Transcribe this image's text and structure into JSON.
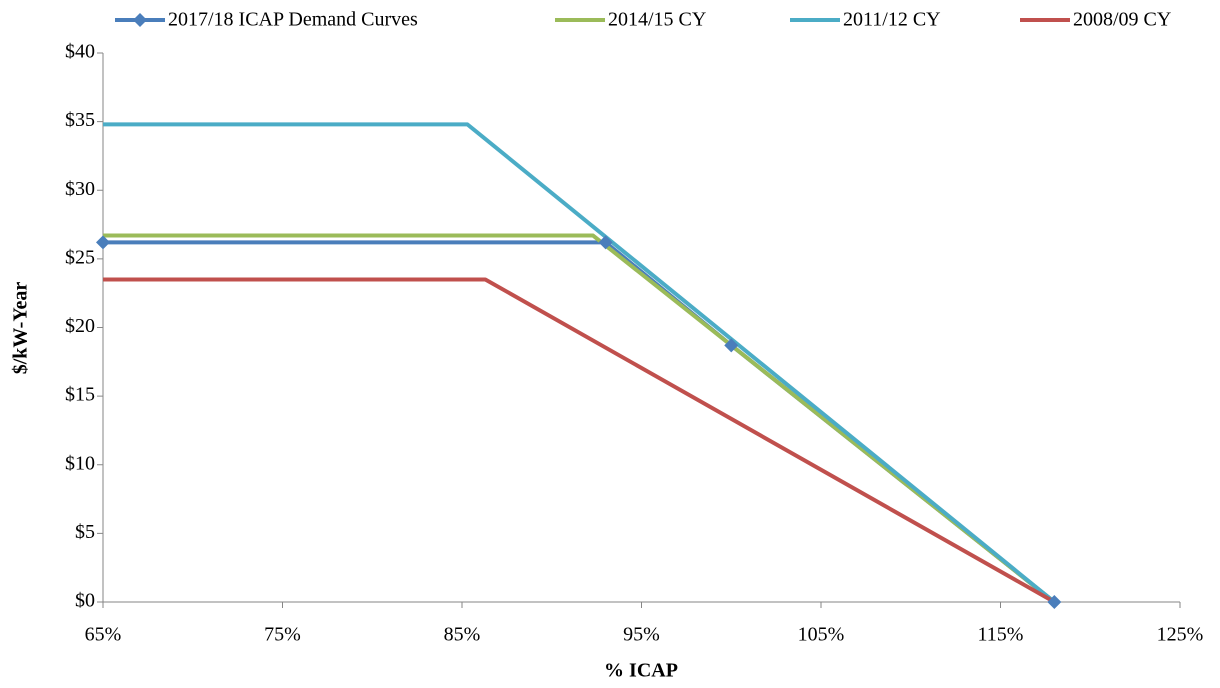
{
  "chart_data": {
    "type": "line",
    "x_label": "% ICAP",
    "y_label": "$/kW-Year",
    "xlim": [
      65,
      125
    ],
    "xticks": [
      {
        "value": 65,
        "label": "65%"
      },
      {
        "value": 75,
        "label": "75%"
      },
      {
        "value": 85,
        "label": "85%"
      },
      {
        "value": 95,
        "label": "95%"
      },
      {
        "value": 105,
        "label": "105%"
      },
      {
        "value": 115,
        "label": "115%"
      },
      {
        "value": 125,
        "label": "125%"
      }
    ],
    "ylim": [
      0,
      40
    ],
    "yticks": [
      {
        "value": 0,
        "label": "$0"
      },
      {
        "value": 5,
        "label": "$5"
      },
      {
        "value": 10,
        "label": "$10"
      },
      {
        "value": 15,
        "label": "$15"
      },
      {
        "value": 20,
        "label": "$20"
      },
      {
        "value": 25,
        "label": "$25"
      },
      {
        "value": 30,
        "label": "$30"
      },
      {
        "value": 35,
        "label": "$35"
      },
      {
        "value": 40,
        "label": "$40"
      }
    ],
    "grid": false,
    "legend": "top",
    "series": [
      {
        "name": "2017/18 ICAP Demand Curves",
        "color": "#4a7ebb",
        "marker": "diamond",
        "x": [
          65,
          93,
          100,
          118
        ],
        "values": [
          26.2,
          26.2,
          18.7,
          0
        ]
      },
      {
        "name": "2014/15 CY",
        "color": "#9bbb59",
        "x": [
          65,
          92.3,
          118
        ],
        "values": [
          26.7,
          26.7,
          0
        ]
      },
      {
        "name": "2011/12 CY",
        "color": "#4bacc6",
        "x": [
          65,
          85.3,
          118
        ],
        "values": [
          34.8,
          34.8,
          0
        ]
      },
      {
        "name": "2008/09 CY",
        "color": "#c0504d",
        "x": [
          65,
          86.3,
          118
        ],
        "values": [
          23.5,
          23.5,
          0
        ]
      }
    ]
  }
}
